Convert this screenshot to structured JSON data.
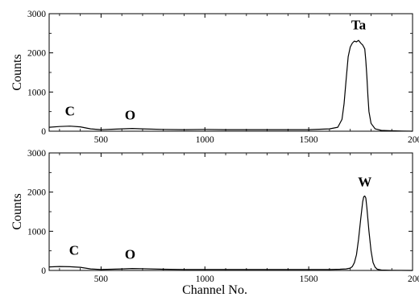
{
  "chart_data": [
    {
      "type": "line",
      "ylabel": "Counts",
      "xlabel": "",
      "xlim": [
        250,
        2000
      ],
      "ylim": [
        0,
        3000
      ],
      "xticks": [
        "500",
        "1000",
        "1500",
        "2000"
      ],
      "yticks": [
        "0",
        "1000",
        "2000",
        "3000"
      ],
      "grid": false,
      "annotations": [
        {
          "text": "C",
          "x": 350,
          "y": 400
        },
        {
          "text": "O",
          "x": 640,
          "y": 300
        },
        {
          "text": "Ta",
          "x": 1740,
          "y": 2600
        }
      ],
      "series": [
        {
          "x": [
            250,
            300,
            350,
            400,
            450,
            500,
            550,
            600,
            650,
            700,
            800,
            900,
            1000,
            1100,
            1200,
            1300,
            1400,
            1500,
            1600,
            1640,
            1660,
            1670,
            1680,
            1690,
            1700,
            1710,
            1720,
            1730,
            1740,
            1750,
            1760,
            1770,
            1775,
            1780,
            1785,
            1790,
            1800,
            1820,
            1850,
            1900,
            1950,
            2000
          ],
          "y": [
            100,
            120,
            130,
            110,
            60,
            40,
            50,
            60,
            70,
            60,
            45,
            40,
            45,
            40,
            40,
            40,
            40,
            40,
            60,
            100,
            300,
            700,
            1300,
            1900,
            2150,
            2250,
            2300,
            2280,
            2320,
            2250,
            2200,
            2100,
            1800,
            1400,
            900,
            500,
            200,
            60,
            20,
            10,
            5,
            0
          ]
        }
      ]
    },
    {
      "type": "line",
      "ylabel": "Counts",
      "xlabel": "Channel No.",
      "xlim": [
        250,
        2000
      ],
      "ylim": [
        0,
        3000
      ],
      "xticks": [
        "500",
        "1000",
        "1500",
        "2000"
      ],
      "yticks": [
        "0",
        "1000",
        "2000",
        "3000"
      ],
      "grid": false,
      "annotations": [
        {
          "text": "C",
          "x": 370,
          "y": 400
        },
        {
          "text": "O",
          "x": 640,
          "y": 300
        },
        {
          "text": "W",
          "x": 1770,
          "y": 2150
        }
      ],
      "series": [
        {
          "x": [
            250,
            300,
            350,
            400,
            450,
            500,
            550,
            600,
            650,
            700,
            800,
            900,
            1000,
            1100,
            1200,
            1300,
            1400,
            1500,
            1600,
            1650,
            1680,
            1700,
            1710,
            1720,
            1730,
            1740,
            1750,
            1760,
            1765,
            1770,
            1775,
            1780,
            1790,
            1800,
            1810,
            1820,
            1830,
            1850,
            1900,
            2000
          ],
          "y": [
            90,
            100,
            95,
            80,
            40,
            25,
            30,
            40,
            50,
            45,
            30,
            25,
            25,
            25,
            25,
            25,
            25,
            25,
            25,
            30,
            40,
            60,
            100,
            200,
            400,
            800,
            1300,
            1750,
            1880,
            1900,
            1850,
            1600,
            1000,
            500,
            200,
            80,
            30,
            10,
            5,
            0
          ]
        }
      ]
    }
  ]
}
